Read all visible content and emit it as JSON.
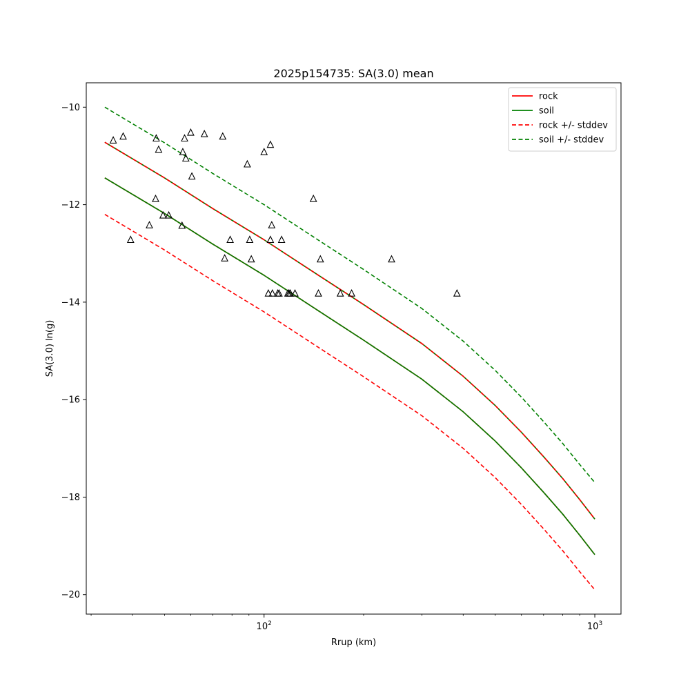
{
  "chart_data": {
    "type": "line",
    "title": "2025p154735: SA(3.0) mean",
    "xlabel": "Rrup (km)",
    "ylabel": "SA(3.0) ln(g)",
    "xscale": "log",
    "xlim": [
      29,
      1200
    ],
    "ylim": [
      -20.4,
      -9.5
    ],
    "xticks_major": [
      {
        "value": 100,
        "base": "10",
        "exp": "2"
      },
      {
        "value": 1000,
        "base": "10",
        "exp": "3"
      }
    ],
    "yticks": [
      "-10",
      "-12",
      "-14",
      "-16",
      "-18",
      "-20"
    ],
    "grid": false,
    "legend_position": "top-right",
    "legend": [
      {
        "label": "rock",
        "color": "#ff0000",
        "dash": false
      },
      {
        "label": "soil",
        "color": "#008000",
        "dash": false
      },
      {
        "label": "rock +/- stddev",
        "color": "#ff0000",
        "dash": true
      },
      {
        "label": "soil +/- stddev",
        "color": "#008000",
        "dash": true
      }
    ],
    "curve_x": [
      33,
      50,
      70,
      100,
      150,
      200,
      300,
      400,
      500,
      600,
      700,
      800,
      900,
      1000
    ],
    "series": [
      {
        "name": "rock",
        "color": "#ff0000",
        "dash": false,
        "y": [
          -10.72,
          -11.45,
          -12.08,
          -12.72,
          -13.5,
          -14.05,
          -14.85,
          -15.52,
          -16.12,
          -16.67,
          -17.17,
          -17.62,
          -18.05,
          -18.45
        ]
      },
      {
        "name": "rock",
        "color": "#ff0000",
        "dash": false,
        "y": [
          -11.45,
          -12.18,
          -12.81,
          -13.45,
          -14.23,
          -14.78,
          -15.58,
          -16.25,
          -16.85,
          -17.4,
          -17.9,
          -18.35,
          -18.78,
          -19.18
        ]
      },
      {
        "name": "soil",
        "color": "#008000",
        "dash": false,
        "y": [
          -10.72,
          -11.45,
          -12.08,
          -12.72,
          -13.5,
          -14.05,
          -14.85,
          -15.52,
          -16.12,
          -16.67,
          -17.17,
          -17.62,
          -18.05,
          -18.45
        ]
      },
      {
        "name": "soil",
        "color": "#008000",
        "dash": false,
        "y": [
          -11.45,
          -12.18,
          -12.81,
          -13.45,
          -14.23,
          -14.78,
          -15.58,
          -16.25,
          -16.85,
          -17.4,
          -17.9,
          -18.35,
          -18.78,
          -19.18
        ]
      },
      {
        "name": "rock +/- stddev",
        "color": "#ff0000",
        "dash": true,
        "y": [
          -10.72,
          -11.45,
          -12.08,
          -12.72,
          -13.5,
          -14.05,
          -14.85,
          -15.52,
          -16.12,
          -16.67,
          -17.17,
          -17.62,
          -18.05,
          -18.45
        ]
      },
      {
        "name": "rock +/- stddev",
        "color": "#ff0000",
        "dash": true,
        "y": [
          -11.45,
          -12.18,
          -12.81,
          -13.45,
          -14.23,
          -14.78,
          -15.58,
          -16.25,
          -16.85,
          -17.4,
          -17.9,
          -18.35,
          -18.78,
          -19.18
        ]
      },
      {
        "name": "rock +/- stddev",
        "color": "#ff0000",
        "dash": true,
        "y": [
          -12.2,
          -12.93,
          -13.56,
          -14.2,
          -14.98,
          -15.53,
          -16.33,
          -17.0,
          -17.6,
          -18.15,
          -18.65,
          -19.1,
          -19.53,
          -19.9
        ]
      },
      {
        "name": "soil +/- stddev",
        "color": "#008000",
        "dash": true,
        "y": [
          -10.0,
          -10.73,
          -11.36,
          -12.0,
          -12.78,
          -13.33,
          -14.13,
          -14.8,
          -15.4,
          -15.95,
          -16.45,
          -16.9,
          -17.33,
          -17.7
        ]
      },
      {
        "name": "soil +/- stddev",
        "color": "#008000",
        "dash": true,
        "y": [
          -11.45,
          -12.18,
          -12.81,
          -13.45,
          -14.23,
          -14.78,
          -15.58,
          -16.25,
          -16.85,
          -17.4,
          -17.9,
          -18.35,
          -18.78,
          -19.18
        ]
      }
    ],
    "observations": {
      "marker": "triangle",
      "points": [
        [
          35,
          -10.68
        ],
        [
          37.5,
          -10.6
        ],
        [
          39.5,
          -12.72
        ],
        [
          45,
          -12.42
        ],
        [
          47,
          -11.88
        ],
        [
          47.2,
          -10.64
        ],
        [
          48,
          -10.87
        ],
        [
          49.5,
          -12.22
        ],
        [
          51.5,
          -12.22
        ],
        [
          56.5,
          -12.43
        ],
        [
          56.8,
          -10.92
        ],
        [
          57.5,
          -10.64
        ],
        [
          58,
          -11.05
        ],
        [
          60,
          -10.52
        ],
        [
          60.5,
          -11.42
        ],
        [
          66,
          -10.55
        ],
        [
          75,
          -10.6
        ],
        [
          76,
          -13.1
        ],
        [
          79,
          -12.72
        ],
        [
          89,
          -11.17
        ],
        [
          90.5,
          -12.72
        ],
        [
          91.5,
          -13.12
        ],
        [
          100,
          -10.92
        ],
        [
          103,
          -13.82
        ],
        [
          104.5,
          -12.72
        ],
        [
          104.5,
          -10.77
        ],
        [
          105.5,
          -12.42
        ],
        [
          106,
          -13.82
        ],
        [
          110,
          -13.82
        ],
        [
          111,
          -13.82
        ],
        [
          113,
          -12.72
        ],
        [
          118,
          -13.82
        ],
        [
          119,
          -13.82
        ],
        [
          120,
          -13.82
        ],
        [
          124,
          -13.82
        ],
        [
          141,
          -11.88
        ],
        [
          146,
          -13.82
        ],
        [
          148,
          -13.12
        ],
        [
          170,
          -13.82
        ],
        [
          184,
          -13.82
        ],
        [
          243,
          -13.12
        ],
        [
          383,
          -13.82
        ]
      ]
    }
  }
}
